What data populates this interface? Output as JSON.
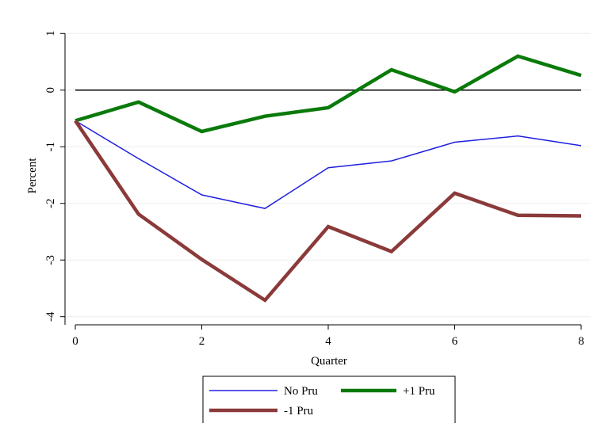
{
  "chart_data": {
    "type": "line",
    "title": "",
    "xlabel": "Quarter",
    "ylabel": "Percent",
    "xlim": [
      0,
      8
    ],
    "ylim": [
      -4.2,
      1.2
    ],
    "x_ticks": [
      0,
      2,
      4,
      6,
      8
    ],
    "y_ticks": [
      1,
      0,
      -1,
      -2,
      -3,
      -4
    ],
    "grid": true,
    "zero_line": true,
    "legend_position": "bottom",
    "x": [
      0,
      1,
      2,
      3,
      4,
      5,
      6,
      7,
      8
    ],
    "series": [
      {
        "name": "No Pru",
        "color": "#1f1fe0",
        "values": [
          -0.54,
          -1.21,
          -1.85,
          -2.09,
          -1.37,
          -1.25,
          -0.92,
          -0.81,
          -0.98
        ]
      },
      {
        "name": "+1 Pru",
        "color": "#0a7a0a",
        "values": [
          -0.54,
          -0.21,
          -0.73,
          -0.46,
          -0.31,
          0.36,
          -0.03,
          0.6,
          0.26
        ]
      },
      {
        "name": "-1 Pru",
        "color": "#8b3a3a",
        "values": [
          -0.54,
          -2.19,
          -2.99,
          -3.71,
          -2.41,
          -2.85,
          -1.82,
          -2.21,
          -2.22
        ]
      }
    ]
  }
}
